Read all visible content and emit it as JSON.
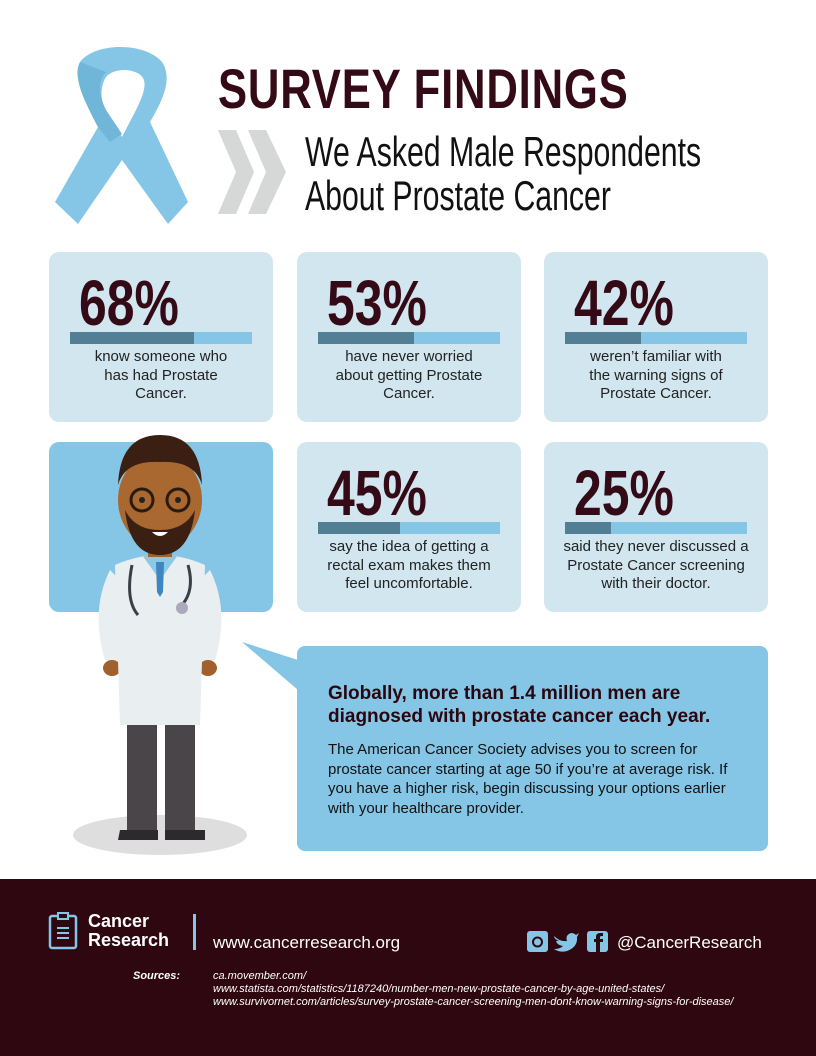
{
  "header": {
    "title": "SURVEY FINDINGS",
    "subtitle_line1": "We Asked Male Respondents",
    "subtitle_line2": "About Prostate Cancer"
  },
  "stats": [
    {
      "value": "68%",
      "percent": 68,
      "text": "know someone who has had Prostate Cancer."
    },
    {
      "value": "53%",
      "percent": 53,
      "text": "have never worried about getting Prostate Cancer."
    },
    {
      "value": "42%",
      "percent": 42,
      "text": "weren’t familiar with the warning signs of Prostate Cancer."
    },
    {
      "value": "45%",
      "percent": 45,
      "text": "say the idea of getting a rectal exam makes them feel uncomfortable."
    },
    {
      "value": "25%",
      "percent": 25,
      "text": "said they never discussed a Prostate Cancer screening with their doctor."
    }
  ],
  "callout": {
    "heading": "Globally, more than 1.4 million men are diagnosed with prostate cancer each year.",
    "body": "The American Cancer Society advises you to screen for prostate cancer starting at age 50 if you’re at average risk. If you have a higher risk, begin discussing your options earlier with your healthcare provider."
  },
  "footer": {
    "brand_line1": "Cancer",
    "brand_line2": "Research",
    "website": "www.cancerresearch.org",
    "handle": "@CancerResearch",
    "sources_label": "Sources:",
    "sources": [
      "ca.movember.com/",
      "www.statista.com/statistics/1187240/number-men-new-prostate-cancer-by-age-united-states/",
      "www.survivornet.com/articles/survey-prostate-cancer-screening-men-dont-know-warning-signs-for-disease/"
    ]
  },
  "colors": {
    "maroon": "#350a17",
    "light_blue": "#85c6e6",
    "card_bg": "#d1e6ee",
    "bar_fill": "#537f95",
    "footer_bg": "#2f0711"
  }
}
